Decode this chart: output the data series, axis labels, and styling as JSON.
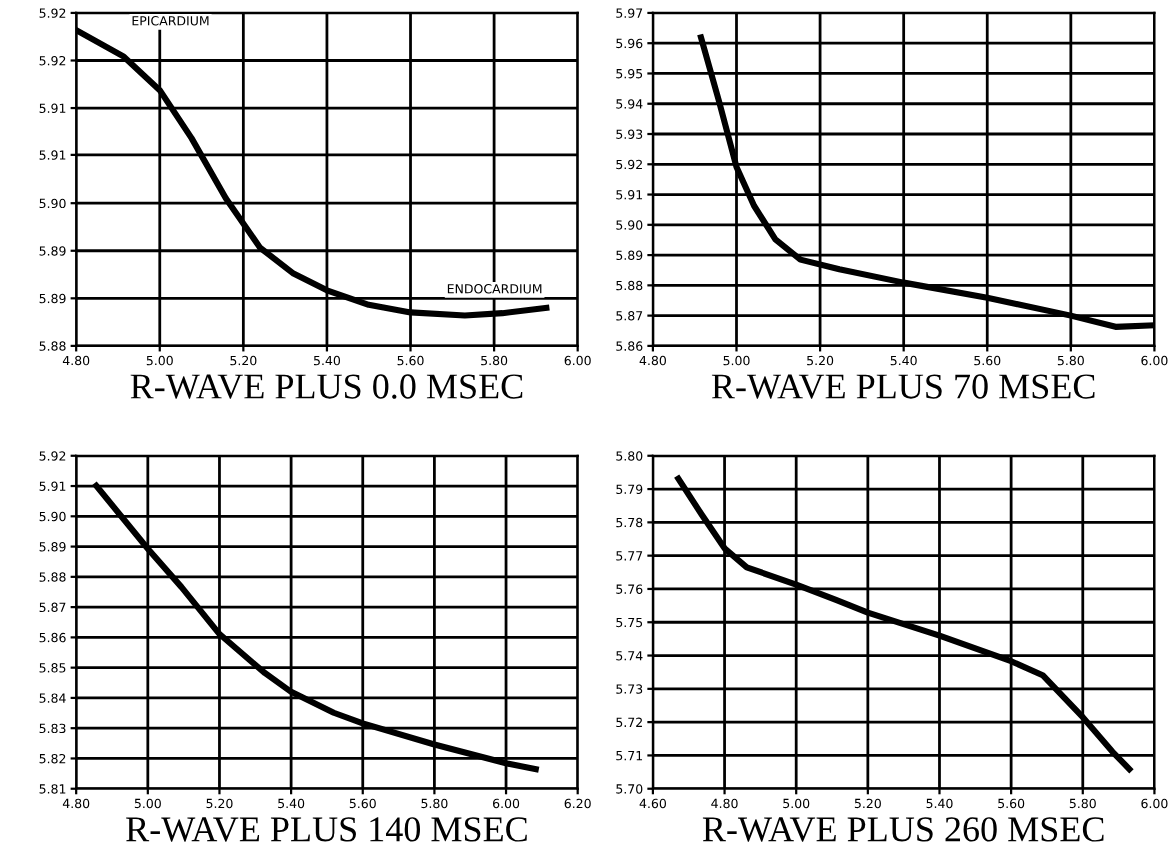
{
  "chart_data": [
    {
      "type": "line",
      "xlabel": "R-WAVE PLUS 0.0 MSEC",
      "grid": true,
      "legend": false,
      "series": [
        {
          "color": "#000000",
          "x": [
            4.8,
            4.914,
            5.0,
            5.076,
            5.158,
            5.24,
            5.32,
            5.4,
            5.5,
            5.6,
            5.73,
            5.82,
            5.925
          ],
          "values": [
            5.9215,
            5.918,
            5.9136,
            5.9073,
            5.8994,
            5.8929,
            5.8895,
            5.8873,
            5.8854,
            5.8844,
            5.884,
            5.8843,
            5.885
          ]
        }
      ],
      "xlim": [
        4.8,
        6.0
      ],
      "ylim": [
        5.88,
        5.92375
      ],
      "xticks": [
        {
          "value": 4.8,
          "label": "4.80"
        },
        {
          "value": 5.0,
          "label": "5.00"
        },
        {
          "value": 5.2,
          "label": "5.20"
        },
        {
          "value": 5.4,
          "label": "5.40"
        },
        {
          "value": 5.6,
          "label": "5.60"
        },
        {
          "value": 5.8,
          "label": "5.80"
        },
        {
          "value": 6.0,
          "label": "6.00"
        }
      ],
      "yticks": [
        {
          "value": 5.88,
          "label": "5.88"
        },
        {
          "value": 5.88625,
          "label": "5.89"
        },
        {
          "value": 5.8925,
          "label": "5.89"
        },
        {
          "value": 5.89875,
          "label": "5.90"
        },
        {
          "value": 5.9051,
          "label": "5.91"
        },
        {
          "value": 5.91125,
          "label": "5.91"
        },
        {
          "value": 5.9175,
          "label": "5.92"
        },
        {
          "value": 5.92375,
          "label": "5.92"
        }
      ],
      "annotations": [
        "EPICARDIUM",
        "ENDOCARDIUM"
      ]
    },
    {
      "type": "line",
      "xlabel": "R-WAVE PLUS 70 MSEC",
      "grid": true,
      "legend": false,
      "series": [
        {
          "color": "#000000",
          "x": [
            4.915,
            4.958,
            5.0,
            5.042,
            5.093,
            5.153,
            5.246,
            5.4,
            5.6,
            5.8,
            5.907,
            6.0
          ],
          "values": [
            5.9619,
            5.9409,
            5.9191,
            5.9063,
            5.8952,
            5.8885,
            5.8853,
            5.8809,
            5.8759,
            5.87,
            5.8663,
            5.8668
          ]
        }
      ],
      "xlim": [
        4.8,
        6.0
      ],
      "ylim": [
        5.86,
        5.97
      ],
      "xticks": [
        {
          "value": 4.8,
          "label": "4.80"
        },
        {
          "value": 5.0,
          "label": "5.00"
        },
        {
          "value": 5.2,
          "label": "5.20"
        },
        {
          "value": 5.4,
          "label": "5.40"
        },
        {
          "value": 5.6,
          "label": "5.60"
        },
        {
          "value": 5.8,
          "label": "5.80"
        },
        {
          "value": 6.0,
          "label": "6.00"
        }
      ],
      "yticks": [
        {
          "value": 5.86,
          "label": "5.86"
        },
        {
          "value": 5.87,
          "label": "5.87"
        },
        {
          "value": 5.88,
          "label": "5.88"
        },
        {
          "value": 5.89,
          "label": "5.89"
        },
        {
          "value": 5.9,
          "label": "5.90"
        },
        {
          "value": 5.91,
          "label": "5.91"
        },
        {
          "value": 5.92,
          "label": "5.92"
        },
        {
          "value": 5.93,
          "label": "5.93"
        },
        {
          "value": 5.94,
          "label": "5.94"
        },
        {
          "value": 5.95,
          "label": "5.95"
        },
        {
          "value": 5.96,
          "label": "5.96"
        },
        {
          "value": 5.97,
          "label": "5.97"
        }
      ]
    },
    {
      "type": "line",
      "xlabel": "R-WAVE PLUS 140 MSEC",
      "grid": true,
      "legend": false,
      "series": [
        {
          "color": "#000000",
          "x": [
            4.856,
            5.0,
            5.094,
            5.2,
            5.327,
            5.4,
            5.519,
            5.6,
            5.8,
            6.0,
            6.083
          ],
          "values": [
            5.9101,
            5.8893,
            5.8766,
            5.8611,
            5.8482,
            5.842,
            5.8351,
            5.8316,
            5.8246,
            5.8184,
            5.8165
          ]
        }
      ],
      "xlim": [
        4.8,
        6.2
      ],
      "ylim": [
        5.81,
        5.92
      ],
      "xticks": [
        {
          "value": 4.8,
          "label": "4.80"
        },
        {
          "value": 5.0,
          "label": "5.00"
        },
        {
          "value": 5.2,
          "label": "5.20"
        },
        {
          "value": 5.4,
          "label": "5.40"
        },
        {
          "value": 5.6,
          "label": "5.60"
        },
        {
          "value": 5.8,
          "label": "5.80"
        },
        {
          "value": 6.0,
          "label": "6.00"
        },
        {
          "value": 6.2,
          "label": "6.20"
        }
      ],
      "yticks": [
        {
          "value": 5.81,
          "label": "5.81"
        },
        {
          "value": 5.82,
          "label": "5.82"
        },
        {
          "value": 5.83,
          "label": "5.83"
        },
        {
          "value": 5.84,
          "label": "5.84"
        },
        {
          "value": 5.85,
          "label": "5.85"
        },
        {
          "value": 5.86,
          "label": "5.86"
        },
        {
          "value": 5.87,
          "label": "5.87"
        },
        {
          "value": 5.88,
          "label": "5.88"
        },
        {
          "value": 5.89,
          "label": "5.89"
        },
        {
          "value": 5.9,
          "label": "5.90"
        },
        {
          "value": 5.91,
          "label": "5.91"
        },
        {
          "value": 5.92,
          "label": "5.92"
        }
      ]
    },
    {
      "type": "line",
      "xlabel": "R-WAVE PLUS 260 MSEC",
      "grid": true,
      "legend": false,
      "series": [
        {
          "color": "#000000",
          "x": [
            4.671,
            4.737,
            4.8,
            4.862,
            5.0,
            5.111,
            5.2,
            5.4,
            5.6,
            5.688,
            5.8,
            5.883,
            5.93
          ],
          "values": [
            5.7931,
            5.7822,
            5.7722,
            5.7665,
            5.7613,
            5.7567,
            5.7529,
            5.746,
            5.7383,
            5.7341,
            5.7215,
            5.7111,
            5.7059
          ]
        }
      ],
      "xlim": [
        4.6,
        6.0
      ],
      "ylim": [
        5.7,
        5.8
      ],
      "xticks": [
        {
          "value": 4.6,
          "label": "4.60"
        },
        {
          "value": 4.8,
          "label": "4.80"
        },
        {
          "value": 5.0,
          "label": "5.00"
        },
        {
          "value": 5.2,
          "label": "5.20"
        },
        {
          "value": 5.4,
          "label": "5.40"
        },
        {
          "value": 5.6,
          "label": "5.60"
        },
        {
          "value": 5.8,
          "label": "5.80"
        },
        {
          "value": 6.0,
          "label": "6.00"
        }
      ],
      "yticks": [
        {
          "value": 5.7,
          "label": "5.70"
        },
        {
          "value": 5.71,
          "label": "5.71"
        },
        {
          "value": 5.72,
          "label": "5.72"
        },
        {
          "value": 5.73,
          "label": "5.73"
        },
        {
          "value": 5.74,
          "label": "5.74"
        },
        {
          "value": 5.75,
          "label": "5.75"
        },
        {
          "value": 5.76,
          "label": "5.76"
        },
        {
          "value": 5.77,
          "label": "5.77"
        },
        {
          "value": 5.78,
          "label": "5.78"
        },
        {
          "value": 5.79,
          "label": "5.79"
        },
        {
          "value": 5.8,
          "label": "5.80"
        }
      ]
    }
  ]
}
